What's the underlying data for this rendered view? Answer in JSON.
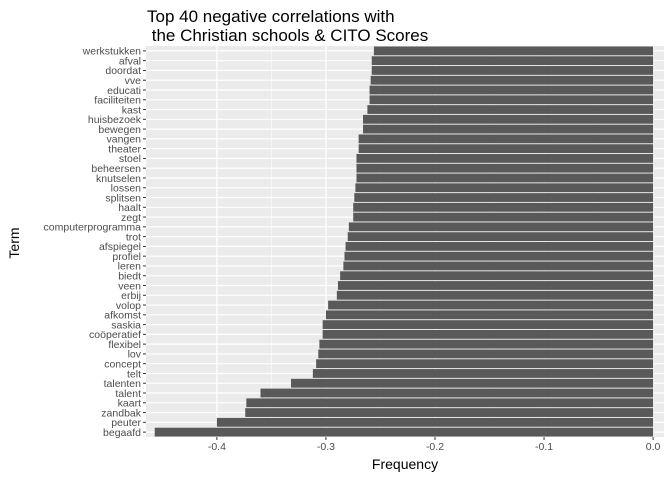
{
  "chart_data": {
    "type": "bar",
    "orientation": "horizontal",
    "title_lines": [
      "Top 40 negative correlations with",
      " the Christian schools & CITO Scores"
    ],
    "xlabel": "Frequency",
    "ylabel": "Term",
    "xlim": [
      -0.465,
      0.01
    ],
    "xticks": [
      -0.4,
      -0.3,
      -0.2,
      -0.1,
      0.0
    ],
    "xtick_labels": [
      "-0.4",
      "-0.3",
      "-0.2",
      "-0.1",
      "0.0"
    ],
    "grid": true,
    "bar_color": "#595959",
    "panel_color": "#ebebeb",
    "categories": [
      "werkstukken",
      "afval",
      "doordat",
      "vve",
      "educati",
      "faciliteiten",
      "kast",
      "huisbezoek",
      "bewegen",
      "vangen",
      "theater",
      "stoel",
      "beheersen",
      "knutselen",
      "lossen",
      "splitsen",
      "haalt",
      "zegt",
      "computerprogramma",
      "trot",
      "afspiegel",
      "profiel",
      "leren",
      "biedt",
      "veen",
      "erbij",
      "volop",
      "afkomst",
      "saskia",
      "coöperatief",
      "flexibel",
      "lov",
      "concept",
      "telt",
      "talenten",
      "talent",
      "kaart",
      "zandbak",
      "peuter",
      "begaafd"
    ],
    "values": [
      -0.256,
      -0.258,
      -0.258,
      -0.259,
      -0.26,
      -0.26,
      -0.262,
      -0.266,
      -0.266,
      -0.27,
      -0.27,
      -0.272,
      -0.272,
      -0.272,
      -0.273,
      -0.274,
      -0.275,
      -0.275,
      -0.279,
      -0.28,
      -0.282,
      -0.283,
      -0.284,
      -0.287,
      -0.289,
      -0.29,
      -0.298,
      -0.3,
      -0.303,
      -0.303,
      -0.306,
      -0.307,
      -0.309,
      -0.312,
      -0.332,
      -0.36,
      -0.373,
      -0.374,
      -0.4,
      -0.457
    ]
  }
}
